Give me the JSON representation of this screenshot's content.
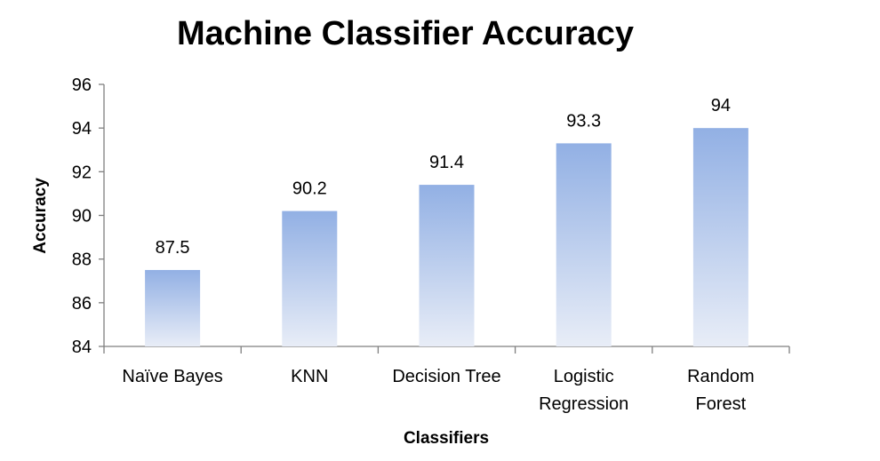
{
  "chart_data": {
    "type": "bar",
    "title": "Machine Classifier Accuracy",
    "xlabel": "Classifiers",
    "ylabel": "Accuracy",
    "categories": [
      "Naïve Bayes",
      "KNN",
      "Decision Tree",
      "Logistic Regression",
      "Random Forest"
    ],
    "category_lines": [
      [
        "Naïve Bayes"
      ],
      [
        "KNN"
      ],
      [
        "Decision Tree"
      ],
      [
        "Logistic",
        "Regression"
      ],
      [
        "Random",
        "Forest"
      ]
    ],
    "values": [
      87.5,
      90.2,
      91.4,
      93.3,
      94
    ],
    "data_labels": [
      "87.5",
      "90.2",
      "91.4",
      "93.3",
      "94"
    ],
    "ylim": [
      84,
      96
    ],
    "yticks": [
      84,
      86,
      88,
      90,
      92,
      94,
      96
    ],
    "grid": false,
    "legend": "none",
    "colors": {
      "bar_top": "#92b0e4",
      "bar_bottom": "#e8edf7",
      "axis": "#7f7f7f"
    }
  }
}
